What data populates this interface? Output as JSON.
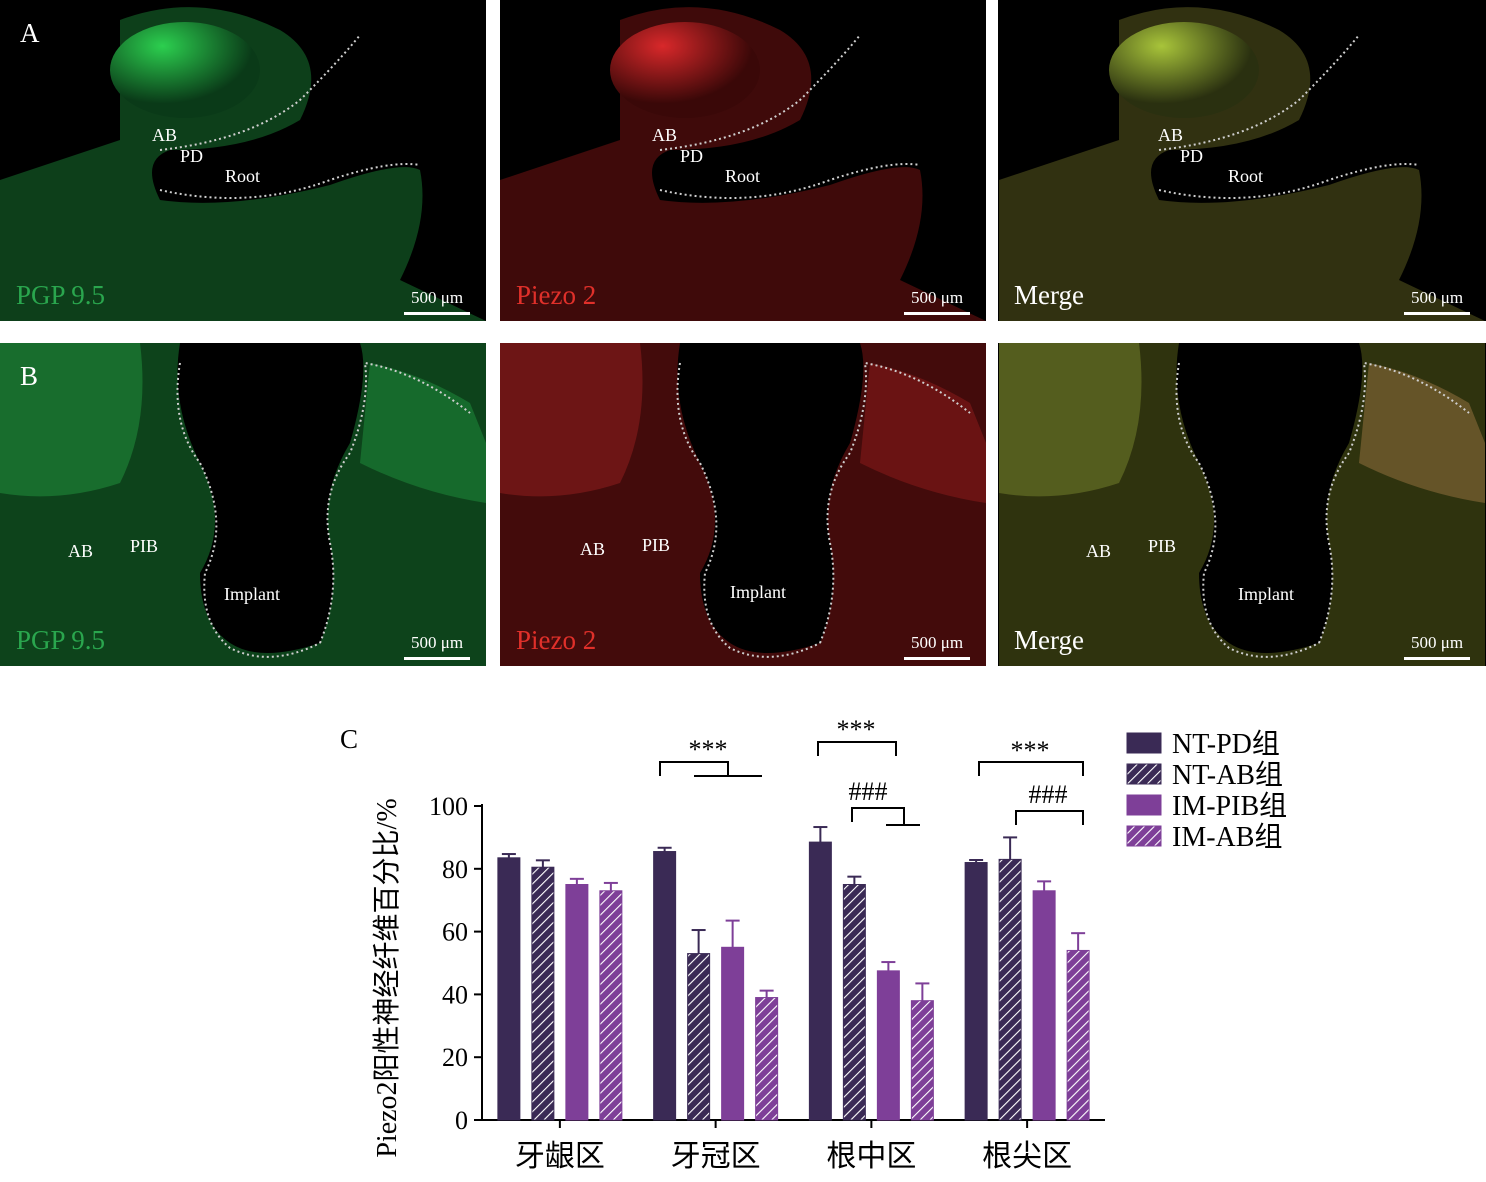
{
  "panels": {
    "rowA_label": "A",
    "rowB_label": "B",
    "chart_label": "C",
    "scale_bar": "500 μm",
    "channels": [
      "PGP 9.5",
      "Piezo 2",
      "Merge"
    ],
    "channel_colors": [
      "#2aa64e",
      "#e0302a",
      "#ffffff"
    ],
    "rowA_tissue_labels": {
      "ab": "AB",
      "pd": "PD",
      "root": "Root"
    },
    "rowB_tissue_labels": {
      "ab": "AB",
      "pib": "PIB",
      "implant": "Implant"
    }
  },
  "chart_data": {
    "type": "bar",
    "categories": [
      "牙龈区",
      "牙冠区",
      "根中区",
      "根尖区"
    ],
    "ylabel": "Piezo2阳性神经纤维百分比/%",
    "xlabel": "",
    "ylim": [
      0,
      100
    ],
    "yticks": [
      "0",
      "20",
      "40",
      "60",
      "80",
      "100"
    ],
    "series": [
      {
        "name": "NT-PD组",
        "color": "#3a2a55",
        "hatch": false,
        "values": [
          83.5,
          85.5,
          88.5,
          82
        ],
        "errors": [
          1.2,
          1.2,
          4.8,
          0.8
        ]
      },
      {
        "name": "NT-AB组",
        "color": "#3a2a55",
        "hatch": true,
        "values": [
          80.5,
          53,
          75,
          83
        ],
        "errors": [
          2.2,
          7.5,
          2.5,
          7
        ]
      },
      {
        "name": "IM-PIB组",
        "color": "#7e3f98",
        "hatch": false,
        "values": [
          75,
          55,
          47.5,
          73
        ],
        "errors": [
          1.8,
          8.5,
          2.8,
          3
        ]
      },
      {
        "name": "IM-AB组",
        "color": "#7e3f98",
        "hatch": true,
        "values": [
          73,
          39,
          38,
          54
        ],
        "errors": [
          2.5,
          2.2,
          5.5,
          5.5
        ]
      }
    ],
    "significance": [
      {
        "group": "牙冠区",
        "text": "***"
      },
      {
        "group": "根中区",
        "text": "***"
      },
      {
        "group": "根中区",
        "text": "###"
      },
      {
        "group": "根尖区",
        "text": "***"
      },
      {
        "group": "根尖区",
        "text": "###"
      }
    ],
    "grid": false,
    "legend_position": "right"
  }
}
